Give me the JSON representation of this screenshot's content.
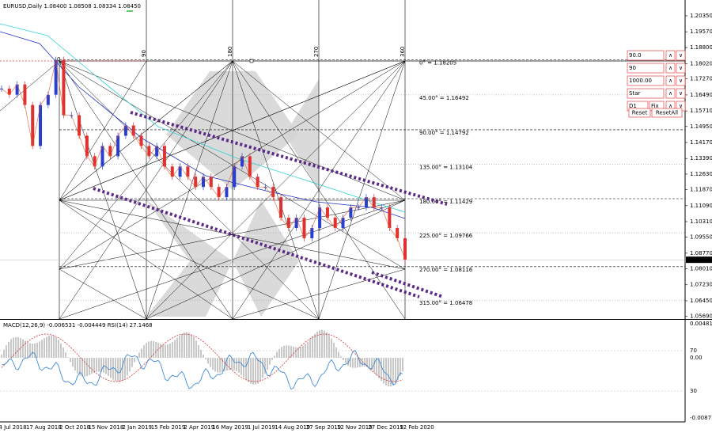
{
  "header": {
    "symbol_line": "EURUSD,Daily  1.08400 1.08508 1.08334 1.08450"
  },
  "price_axis": {
    "range": [
      1.0556,
      1.2112
    ],
    "ticks": [
      {
        "value": 1.2035,
        "label": "1.20350"
      },
      {
        "value": 1.1957,
        "label": "1.19570"
      },
      {
        "value": 1.188,
        "label": "1.18800"
      },
      {
        "value": 1.1802,
        "label": "1.18020"
      },
      {
        "value": 1.1727,
        "label": "1.17270"
      },
      {
        "value": 1.1649,
        "label": "1.16490"
      },
      {
        "value": 1.1571,
        "label": "1.15710"
      },
      {
        "value": 1.1495,
        "label": "1.14950"
      },
      {
        "value": 1.1417,
        "label": "1.14170"
      },
      {
        "value": 1.1339,
        "label": "1.13390"
      },
      {
        "value": 1.1263,
        "label": "1.12630"
      },
      {
        "value": 1.1187,
        "label": "1.11870"
      },
      {
        "value": 1.1109,
        "label": "1.11090"
      },
      {
        "value": 1.1031,
        "label": "1.10310"
      },
      {
        "value": 1.0955,
        "label": "1.09550"
      },
      {
        "value": 1.0877,
        "label": "1.08770"
      },
      {
        "value": 1.0801,
        "label": "1.08010"
      },
      {
        "value": 1.0723,
        "label": "1.07230"
      },
      {
        "value": 1.0645,
        "label": "1.06450"
      },
      {
        "value": 1.0569,
        "label": "1.05690"
      }
    ],
    "current": {
      "value": 1.0845,
      "label": "1.08450"
    }
  },
  "gann": {
    "angle_labels": [
      "0",
      "90",
      "180",
      "270",
      "360"
    ],
    "levels": [
      {
        "label": "0° = 1.18205",
        "price": 1.18205
      },
      {
        "label": "45.00° = 1.16492",
        "price": 1.16492
      },
      {
        "label": "90.00° = 1.14792",
        "price": 1.14792
      },
      {
        "label": "135.00° = 1.13104",
        "price": 1.13104
      },
      {
        "label": "180.00° = 1.11429",
        "price": 1.11429
      },
      {
        "label": "225.00° = 1.09766",
        "price": 1.09766
      },
      {
        "label": "270.00° = 1.08116",
        "price": 1.08116
      },
      {
        "label": "315.00° = 1.06478",
        "price": 1.06478
      }
    ]
  },
  "closes": [
    1.168,
    1.165,
    1.17,
    1.16,
    1.14,
    1.16,
    1.165,
    1.182,
    1.155,
    1.155,
    1.145,
    1.135,
    1.13,
    1.14,
    1.135,
    1.145,
    1.15,
    1.145,
    1.14,
    1.135,
    1.14,
    1.13,
    1.125,
    1.13,
    1.125,
    1.12,
    1.125,
    1.12,
    1.115,
    1.12,
    1.13,
    1.135,
    1.125,
    1.12,
    1.12,
    1.115,
    1.105,
    1.1,
    1.105,
    1.095,
    1.1,
    1.11,
    1.105,
    1.1,
    1.105,
    1.11,
    1.11,
    1.115,
    1.11,
    1.11,
    1.1,
    1.095,
    1.0845
  ],
  "dates": [
    "4 Jul 2018",
    "17 Aug 2018",
    "2 Oct 2018",
    "15 Nov 2018",
    "2 Jan 2019",
    "15 Feb 2019",
    "2 Apr 2019",
    "16 May 2019",
    "1 Jul 2019",
    "14 Aug 2019",
    "27 Sep 2019",
    "12 Nov 2019",
    "27 Dec 2019",
    "12 Feb 2020"
  ],
  "indicator": {
    "title": "MACD(12,26,9) -0.006531 -0.004449 RSI(14) 27.1468",
    "scale_labels": [
      "0.004814",
      "70",
      "0.00",
      "30",
      "-0.008714"
    ]
  },
  "panel": {
    "fields": [
      "90.0",
      "90",
      "1000.00",
      "Star",
      "D1"
    ],
    "extra": "Fix",
    "up": "∧",
    "down": "∨",
    "buttons": [
      "Reset",
      "ResetAll"
    ]
  }
}
